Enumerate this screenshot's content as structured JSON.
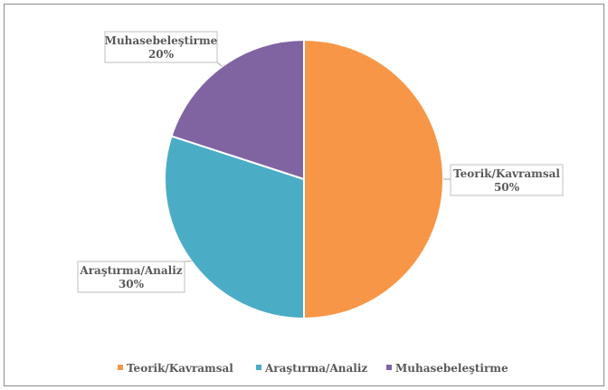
{
  "chart_data": {
    "type": "pie",
    "title": "",
    "categories": [
      "Teorik/Kavramsal",
      "Araştırma/Analiz",
      "Muhasebeleştirme"
    ],
    "values": [
      50,
      30,
      20
    ],
    "colors": [
      "#F79646",
      "#4BACC6",
      "#8064A2"
    ],
    "data_labels": [
      {
        "name": "Teorik/Kavramsal",
        "value": "50%"
      },
      {
        "name": "Araştırma/Analiz",
        "value": "30%"
      },
      {
        "name": "Muhasebeleştirme",
        "value": "20%"
      }
    ],
    "legend": {
      "position": "bottom",
      "items": [
        "Teorik/Kavramsal",
        "Araştırma/Analiz",
        "Muhasebeleştirme"
      ]
    }
  }
}
